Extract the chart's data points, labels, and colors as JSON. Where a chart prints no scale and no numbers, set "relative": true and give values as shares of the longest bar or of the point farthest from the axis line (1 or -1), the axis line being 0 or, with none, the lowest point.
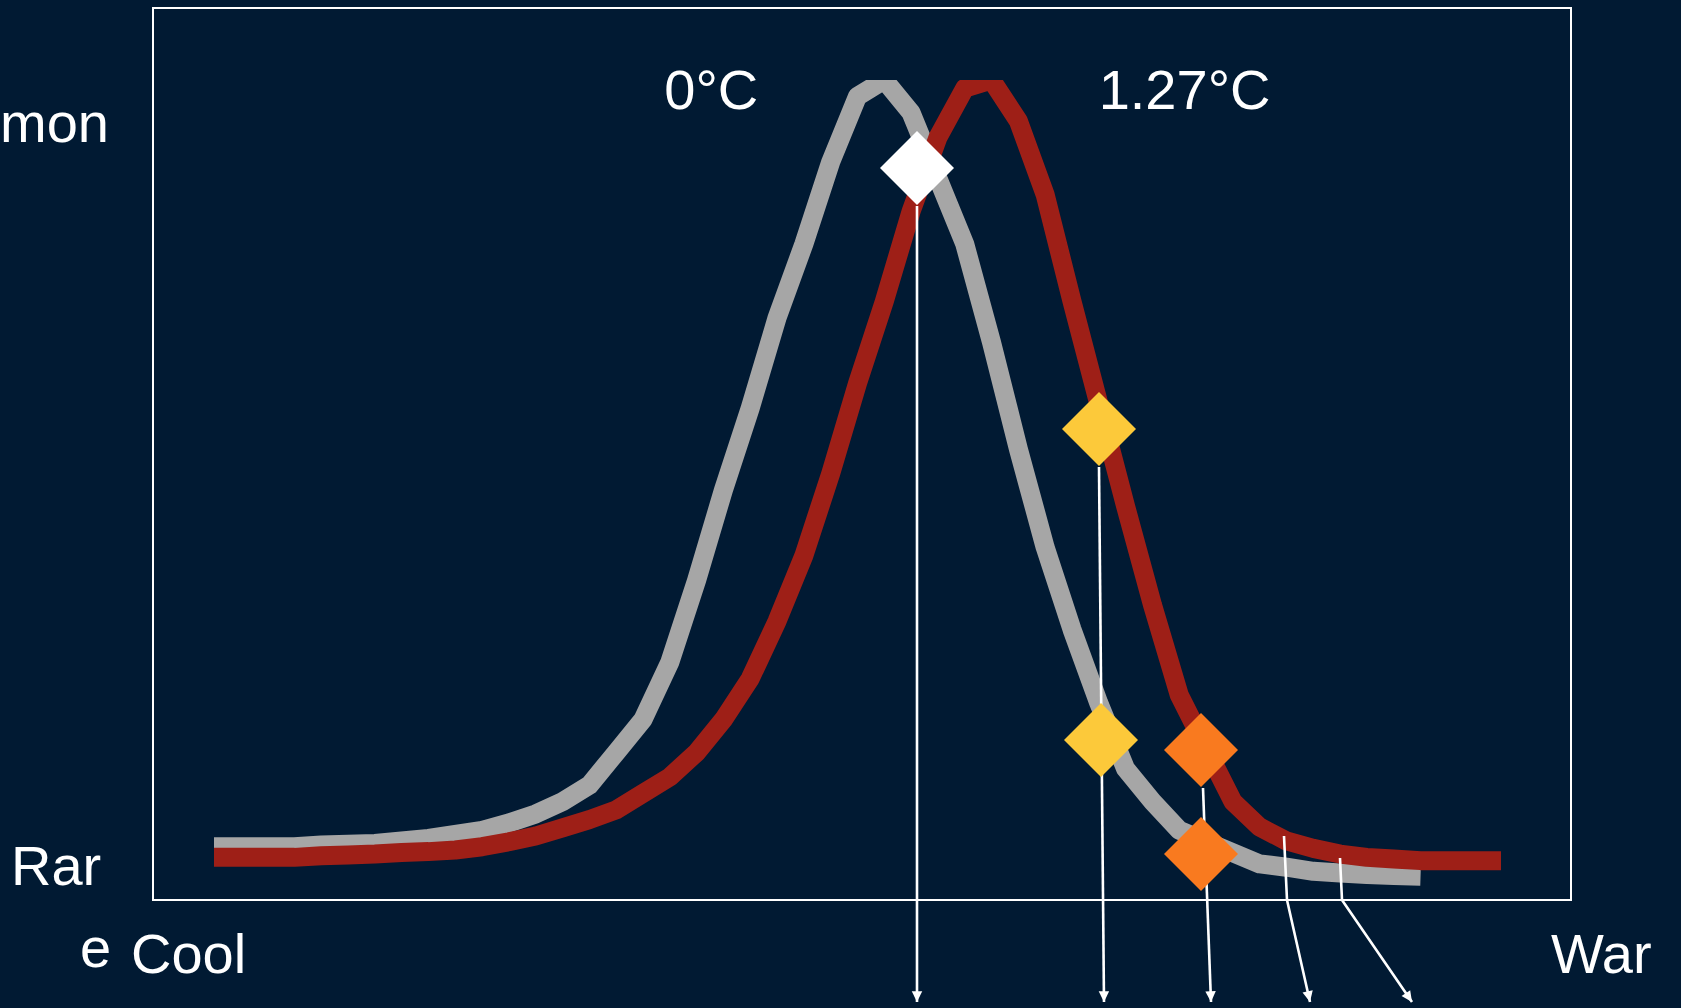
{
  "chart_data": {
    "type": "line",
    "relative": true,
    "legend": false,
    "grid": false,
    "categories": [
      null,
      null,
      null,
      null,
      null,
      null,
      null,
      null,
      null,
      null,
      null,
      null,
      null,
      null,
      null,
      null,
      null,
      null,
      null,
      null,
      null,
      null,
      null,
      null,
      null,
      null,
      null,
      null,
      null,
      null,
      null,
      null,
      null,
      null,
      null,
      null,
      null,
      null,
      null,
      null,
      null,
      null,
      null,
      null,
      null,
      null,
      null,
      null,
      null
    ],
    "series": [
      {
        "name": "0°C",
        "color": "#a6a6a6",
        "marker": "none",
        "values": [
          0.065,
          0.065,
          0.065,
          0.065,
          0.067,
          0.068,
          0.069,
          0.072,
          0.075,
          0.08,
          0.085,
          0.094,
          0.105,
          0.12,
          0.14,
          0.18,
          0.22,
          0.29,
          0.39,
          0.5,
          0.6,
          0.71,
          0.8,
          0.9,
          0.98,
          1.0,
          0.96,
          null,
          0.8,
          0.68,
          0.55,
          0.43,
          0.33,
          0.24,
          0.16,
          0.12,
          0.085,
          null,
          null,
          0.044,
          0.04,
          0.035,
          0.033,
          0.031,
          0.03,
          0.029,
          null,
          null,
          null
        ]
      },
      {
        "name": "1.27°C",
        "color": "#9e1f17",
        "marker": "none",
        "values": [
          0.052,
          0.052,
          0.052,
          0.052,
          0.054,
          0.055,
          0.056,
          0.058,
          0.059,
          0.061,
          0.065,
          0.071,
          0.078,
          0.088,
          0.098,
          0.11,
          0.13,
          0.15,
          0.18,
          0.22,
          0.27,
          0.34,
          0.42,
          0.52,
          0.63,
          0.73,
          0.84,
          0.93,
          0.99,
          1.0,
          0.95,
          0.86,
          0.73,
          null,
          0.48,
          0.36,
          0.25,
          null,
          0.12,
          0.089,
          0.072,
          0.063,
          0.056,
          0.052,
          0.05,
          0.048,
          0.048,
          0.048,
          0.048
        ]
      }
    ],
    "annotations": [
      "mon",
      "Rar",
      "e",
      "Cool",
      "War"
    ]
  }
}
